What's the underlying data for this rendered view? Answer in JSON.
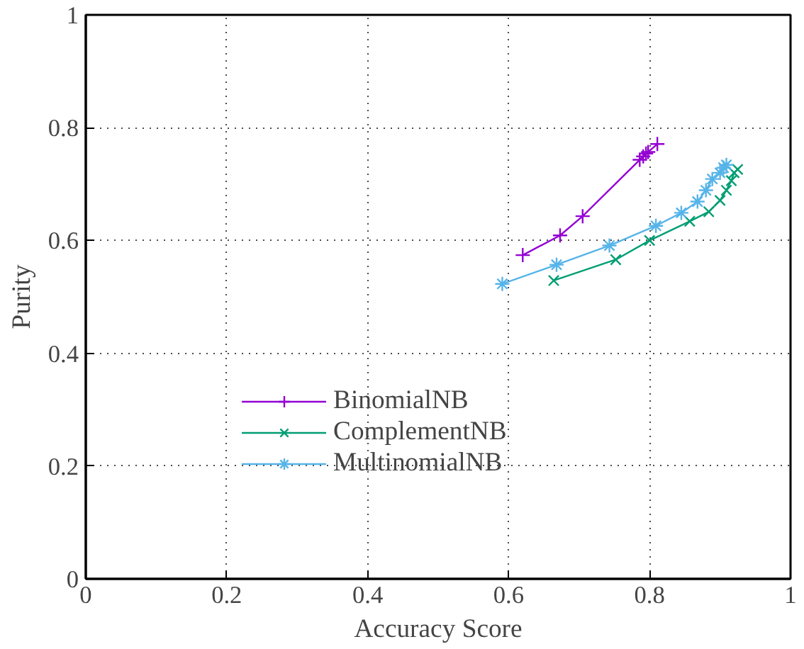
{
  "chart_data": {
    "type": "line",
    "xlabel": "Accuracy Score",
    "ylabel": "Purity",
    "xlim": [
      0,
      1
    ],
    "ylim": [
      0,
      1
    ],
    "xticks": [
      0,
      0.2,
      0.4,
      0.6,
      0.8,
      1
    ],
    "yticks": [
      0,
      0.2,
      0.4,
      0.6,
      0.8,
      1
    ],
    "grid": true,
    "legend": "bottom",
    "line_style": "solid",
    "series": [
      {
        "name": "BinomialNB",
        "color": "#9400d3",
        "marker": "plus",
        "x": [
          0.62,
          0.673,
          0.705,
          0.786,
          0.791,
          0.795,
          0.798,
          0.811
        ],
        "values": [
          0.574,
          0.609,
          0.643,
          0.743,
          0.749,
          0.754,
          0.757,
          0.771
        ]
      },
      {
        "name": "ComplementNB",
        "color": "#009e73",
        "marker": "x",
        "x": [
          0.664,
          0.752,
          0.8,
          0.857,
          0.884,
          0.9,
          0.909,
          0.916,
          0.92,
          0.925
        ],
        "values": [
          0.529,
          0.566,
          0.6,
          0.634,
          0.651,
          0.671,
          0.689,
          0.706,
          0.72,
          0.726
        ]
      },
      {
        "name": "MultinomialNB",
        "color": "#56b4e9",
        "marker": "cross",
        "x": [
          0.591,
          0.668,
          0.743,
          0.809,
          0.845,
          0.868,
          0.88,
          0.889,
          0.9,
          0.905,
          0.909
        ],
        "values": [
          0.523,
          0.557,
          0.591,
          0.626,
          0.649,
          0.669,
          0.689,
          0.709,
          0.72,
          0.729,
          0.734
        ]
      }
    ]
  }
}
